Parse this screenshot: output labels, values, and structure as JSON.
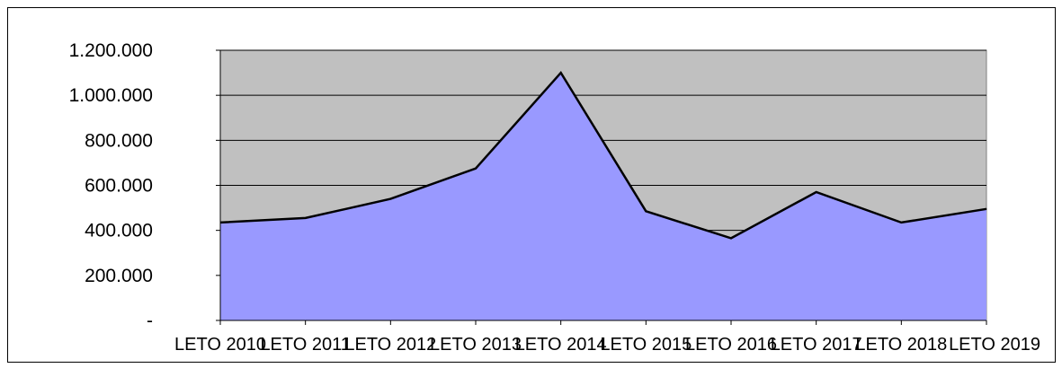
{
  "chart_data": {
    "type": "area",
    "title": "",
    "xlabel": "",
    "ylabel": "",
    "categories": [
      "LETO 2010",
      "LETO 2011",
      "LETO 2012",
      "LETO 2013",
      "LETO 2014",
      "LETO 2015",
      "LETO 2016",
      "LETO 2017",
      "LETO 2018",
      "LETO 2019"
    ],
    "values": [
      435000,
      455000,
      540000,
      675000,
      1100000,
      485000,
      365000,
      570000,
      435000,
      495000
    ],
    "ylim": [
      0,
      1200000
    ],
    "yticks": [
      0,
      200000,
      400000,
      600000,
      800000,
      1000000,
      1200000
    ],
    "ytick_labels": [
      "-",
      "200.000",
      "400.000",
      "600.000",
      "800.000",
      "1.000.000",
      "1.200.000"
    ],
    "grid": true,
    "legend": "none",
    "colors": {
      "plot_background": "#c0c0c0",
      "area_fill": "#9999ff",
      "line": "#000000",
      "gridline": "#000000"
    }
  }
}
